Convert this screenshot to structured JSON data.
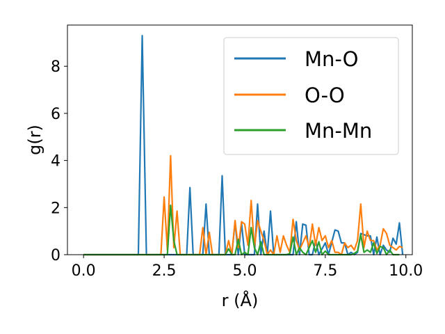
{
  "chart_data": {
    "type": "line",
    "title": "",
    "xlabel": "r (Å)",
    "ylabel": "g(r)",
    "xlim": [
      -0.5,
      10.2
    ],
    "ylim": [
      0,
      9.75
    ],
    "xticks": [
      {
        "value": 0.0,
        "label": "0.0"
      },
      {
        "value": 2.5,
        "label": "2.5"
      },
      {
        "value": 5.0,
        "label": "5.0"
      },
      {
        "value": 7.5,
        "label": "7.5"
      },
      {
        "value": 10.0,
        "label": "10.0"
      }
    ],
    "yticks": [
      {
        "value": 0,
        "label": "0"
      },
      {
        "value": 2,
        "label": "2"
      },
      {
        "value": 4,
        "label": "4"
      },
      {
        "value": 6,
        "label": "6"
      },
      {
        "value": 8,
        "label": "8"
      }
    ],
    "grid": false,
    "legend_position": "top-right",
    "series": [
      {
        "name": "Mn-O",
        "color": "#1f77b4",
        "x": [
          0.0,
          1.7,
          1.82,
          1.95,
          2.2,
          3.2,
          3.3,
          3.4,
          3.7,
          3.8,
          3.9,
          4.2,
          4.3,
          4.4,
          4.6,
          4.7,
          4.8,
          4.9,
          5.0,
          5.3,
          5.4,
          5.5,
          5.6,
          5.7,
          5.8,
          5.9,
          6.3,
          6.5,
          6.6,
          6.7,
          6.8,
          6.9,
          7.0,
          7.1,
          7.2,
          7.3,
          7.5,
          7.6,
          7.8,
          7.9,
          8.0,
          8.1,
          8.2,
          8.3,
          8.4,
          8.5,
          8.6,
          8.7,
          8.8,
          8.9,
          9.0,
          9.1,
          9.2,
          9.3,
          9.4,
          9.5,
          9.6,
          9.7,
          9.8,
          9.9
        ],
        "y": [
          0,
          0,
          9.3,
          0,
          0,
          0,
          2.85,
          0,
          0,
          2.15,
          0,
          0,
          3.35,
          0,
          0,
          1.4,
          0,
          1.35,
          0,
          0,
          2.15,
          0,
          1.0,
          0,
          1.85,
          0,
          0,
          0,
          1.4,
          0,
          1.3,
          1.25,
          0,
          0,
          0.6,
          0,
          0.5,
          0,
          1.05,
          1.0,
          0.5,
          0.5,
          0,
          0.1,
          0,
          0.1,
          0.9,
          0.85,
          0.8,
          0.8,
          0,
          0.75,
          0,
          0.4,
          0.2,
          0.1,
          0.7,
          0.45,
          1.35,
          0
        ]
      },
      {
        "name": "O-O",
        "color": "#ff7f0e",
        "x": [
          0.0,
          2.4,
          2.5,
          2.6,
          2.7,
          2.8,
          2.9,
          3.0,
          3.6,
          3.7,
          3.8,
          3.9,
          4.0,
          4.1,
          4.4,
          4.5,
          4.6,
          4.7,
          4.8,
          4.9,
          5.0,
          5.1,
          5.2,
          5.3,
          5.4,
          5.5,
          5.6,
          5.7,
          5.8,
          5.9,
          6.0,
          6.1,
          6.2,
          6.3,
          6.4,
          6.5,
          6.6,
          6.7,
          6.8,
          6.9,
          7.0,
          7.1,
          7.2,
          7.3,
          7.4,
          7.5,
          7.6,
          7.7,
          7.8,
          7.9,
          8.0,
          8.1,
          8.2,
          8.3,
          8.4,
          8.5,
          8.6,
          8.7,
          8.8,
          8.9,
          9.0,
          9.1,
          9.2,
          9.3,
          9.4,
          9.5,
          9.6,
          9.7,
          9.8,
          9.9
        ],
        "y": [
          0,
          0,
          2.45,
          0.2,
          4.2,
          0.3,
          1.85,
          0,
          0,
          1.15,
          0,
          0.95,
          0,
          0,
          0,
          0.6,
          0,
          1.45,
          0.3,
          1.4,
          1.3,
          0.4,
          2.3,
          0.3,
          1.45,
          1.0,
          0.6,
          0,
          0.2,
          0,
          0.8,
          0.1,
          0.8,
          0.4,
          0.1,
          1.5,
          0.6,
          0.2,
          0.5,
          0.8,
          0.3,
          1.3,
          0.4,
          1.15,
          0.6,
          0.8,
          0.3,
          0.6,
          0.1,
          0.1,
          0,
          0.5,
          0.3,
          0.4,
          0.2,
          0.6,
          2.15,
          0.3,
          1.0,
          0.6,
          0.6,
          0.2,
          0.4,
          1.1,
          0.9,
          0.4,
          0.3,
          0.2,
          0.35,
          0.3
        ]
      },
      {
        "name": "Mn-Mn",
        "color": "#2ca02c",
        "x": [
          0.0,
          2.6,
          2.7,
          2.8,
          2.9,
          4.2,
          4.4,
          4.5,
          4.6,
          4.7,
          4.8,
          4.9,
          5.0,
          5.1,
          5.2,
          5.3,
          5.4,
          5.5,
          5.6,
          6.3,
          6.4,
          6.5,
          6.6,
          6.7,
          6.8,
          6.9,
          7.0,
          7.1,
          7.2,
          7.3,
          7.4,
          7.5,
          7.6,
          8.3,
          8.4,
          8.5,
          8.6,
          8.7,
          8.8,
          8.9,
          9.0,
          9.1,
          9.2,
          9.3,
          9.4,
          9.5,
          9.6,
          9.7,
          9.8
        ],
        "y": [
          0,
          0,
          2.1,
          0.6,
          0,
          0,
          0,
          0.25,
          0,
          0,
          0.65,
          0,
          0.1,
          0,
          1.15,
          0.3,
          0,
          0.55,
          0,
          0,
          0.05,
          0.75,
          0,
          0.3,
          0.1,
          0,
          0.3,
          0.6,
          0.1,
          0.55,
          0,
          0.15,
          0,
          0,
          0.05,
          0.15,
          0.85,
          0.1,
          0.2,
          0.1,
          0.5,
          0.05,
          0.35,
          0.3,
          0,
          0.2,
          0,
          0,
          0
        ]
      }
    ]
  }
}
